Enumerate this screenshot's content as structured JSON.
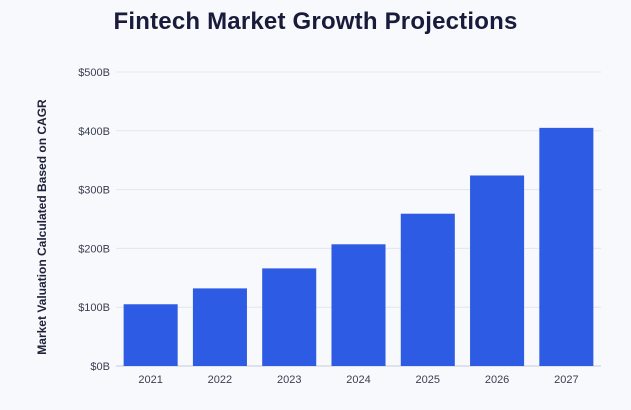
{
  "chart_data": {
    "type": "bar",
    "title": "Fintech Market Growth Projections",
    "xlabel": "",
    "ylabel": "Market Valuation Calculated Based on CAGR",
    "categories": [
      "2021",
      "2022",
      "2023",
      "2024",
      "2025",
      "2026",
      "2027"
    ],
    "values": [
      105,
      132,
      166,
      207,
      259,
      324,
      405
    ],
    "value_unit": "billion USD",
    "ylim": [
      0,
      500
    ],
    "yticks": [
      0,
      100,
      200,
      300,
      400,
      500
    ],
    "ytick_labels": [
      "$0B",
      "$100B",
      "$200B",
      "$300B",
      "$400B",
      "$500B"
    ],
    "grid": true,
    "legend": "none",
    "colors": {
      "bar": "#2d5be3",
      "grid": "#e3e6ee",
      "baseline": "#c9ccd6",
      "background": "#f8f9fc"
    }
  }
}
